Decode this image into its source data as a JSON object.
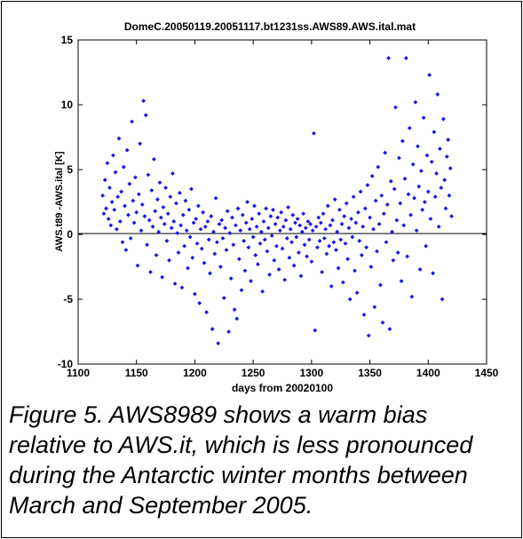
{
  "chart_data": {
    "type": "scatter",
    "title": "DomeC.20050119.20051117.bt1231ss.AWS89.AWS.ital.mat",
    "xlabel": "days from 20020100",
    "ylabel": "AWS.t89 -AWS.ital [K]",
    "xlim": [
      1100,
      1450
    ],
    "ylim": [
      -10,
      15
    ],
    "xticks": [
      1100,
      1150,
      1200,
      1250,
      1300,
      1350,
      1400,
      1450
    ],
    "yticks": [
      -10,
      -5,
      0,
      5,
      10,
      15
    ],
    "xtick_labels": [
      "1100",
      "1150",
      "1200",
      "1250",
      "1300",
      "1350",
      "1400",
      "1450"
    ],
    "ytick_labels": [
      "-10",
      "-5",
      "0",
      "5",
      "10",
      "15"
    ],
    "zero_line": true,
    "grid": false,
    "marker_color": "#1515e6",
    "points": [
      [
        1121,
        3.0
      ],
      [
        1122,
        1.6
      ],
      [
        1123,
        4.2
      ],
      [
        1124,
        2.0
      ],
      [
        1125,
        5.5
      ],
      [
        1126,
        1.2
      ],
      [
        1127,
        3.6
      ],
      [
        1128,
        0.7
      ],
      [
        1129,
        2.5
      ],
      [
        1130,
        6.1
      ],
      [
        1131,
        1.9
      ],
      [
        1132,
        4.8
      ],
      [
        1133,
        0.4
      ],
      [
        1134,
        2.9
      ],
      [
        1135,
        7.4
      ],
      [
        1136,
        1.0
      ],
      [
        1137,
        3.3
      ],
      [
        1138,
        -0.6
      ],
      [
        1139,
        5.2
      ],
      [
        1140,
        2.2
      ],
      [
        1141,
        -1.2
      ],
      [
        1142,
        6.5
      ],
      [
        1143,
        1.5
      ],
      [
        1144,
        3.9
      ],
      [
        1145,
        -0.3
      ],
      [
        1146,
        8.7
      ],
      [
        1147,
        2.6
      ],
      [
        1148,
        0.9
      ],
      [
        1149,
        4.4
      ],
      [
        1150,
        1.7
      ],
      [
        1151,
        -2.4
      ],
      [
        1152,
        3.1
      ],
      [
        1153,
        7.0
      ],
      [
        1154,
        0.3
      ],
      [
        1155,
        2.3
      ],
      [
        1156,
        10.3
      ],
      [
        1157,
        1.4
      ],
      [
        1158,
        9.2
      ],
      [
        1159,
        -0.8
      ],
      [
        1160,
        4.6
      ],
      [
        1161,
        1.1
      ],
      [
        1162,
        -2.9
      ],
      [
        1163,
        3.4
      ],
      [
        1164,
        0.6
      ],
      [
        1165,
        5.8
      ],
      [
        1166,
        1.8
      ],
      [
        1167,
        -1.6
      ],
      [
        1168,
        2.7
      ],
      [
        1169,
        0.2
      ],
      [
        1170,
        4.0
      ],
      [
        1171,
        1.3
      ],
      [
        1172,
        -3.3
      ],
      [
        1173,
        2.1
      ],
      [
        1174,
        0.8
      ],
      [
        1175,
        3.6
      ],
      [
        1176,
        -0.5
      ],
      [
        1177,
        1.6
      ],
      [
        1178,
        -2.0
      ],
      [
        1179,
        2.9
      ],
      [
        1180,
        0.5
      ],
      [
        1181,
        4.7
      ],
      [
        1182,
        1.0
      ],
      [
        1183,
        -3.8
      ],
      [
        1184,
        2.4
      ],
      [
        1185,
        0.1
      ],
      [
        1186,
        -1.4
      ],
      [
        1187,
        3.2
      ],
      [
        1188,
        0.7
      ],
      [
        1189,
        -4.1
      ],
      [
        1190,
        1.5
      ],
      [
        1191,
        -0.9
      ],
      [
        1192,
        2.6
      ],
      [
        1193,
        0.3
      ],
      [
        1194,
        -2.6
      ],
      [
        1195,
        1.9
      ],
      [
        1196,
        -0.2
      ],
      [
        1197,
        3.5
      ],
      [
        1198,
        -1.8
      ],
      [
        1199,
        0.9
      ],
      [
        1200,
        -4.6
      ],
      [
        1201,
        1.2
      ],
      [
        1202,
        -0.7
      ],
      [
        1203,
        2.2
      ],
      [
        1204,
        -5.3
      ],
      [
        1205,
        0.4
      ],
      [
        1206,
        -1.1
      ],
      [
        1207,
        1.7
      ],
      [
        1208,
        -2.2
      ],
      [
        1209,
        0.6
      ],
      [
        1210,
        -6.0
      ],
      [
        1211,
        1.0
      ],
      [
        1212,
        -0.4
      ],
      [
        1213,
        -3.0
      ],
      [
        1214,
        1.4
      ],
      [
        1215,
        -7.3
      ],
      [
        1216,
        0.2
      ],
      [
        1217,
        -1.5
      ],
      [
        1218,
        2.8
      ],
      [
        1219,
        -0.6
      ],
      [
        1220,
        -8.4
      ],
      [
        1221,
        0.8
      ],
      [
        1222,
        -2.5
      ],
      [
        1223,
        1.1
      ],
      [
        1224,
        -0.3
      ],
      [
        1225,
        -4.9
      ],
      [
        1226,
        0.5
      ],
      [
        1227,
        -1.2
      ],
      [
        1228,
        1.8
      ],
      [
        1229,
        -7.5
      ],
      [
        1230,
        0.1
      ],
      [
        1231,
        -3.4
      ],
      [
        1232,
        1.3
      ],
      [
        1233,
        -0.8
      ],
      [
        1234,
        -5.8
      ],
      [
        1235,
        0.7
      ],
      [
        1236,
        -6.5
      ],
      [
        1237,
        2.0
      ],
      [
        1238,
        -1.9
      ],
      [
        1239,
        0.3
      ],
      [
        1240,
        -4.3
      ],
      [
        1241,
        1.5
      ],
      [
        1242,
        -0.5
      ],
      [
        1243,
        -2.8
      ],
      [
        1244,
        0.9
      ],
      [
        1245,
        2.5
      ],
      [
        1246,
        -1.0
      ],
      [
        1247,
        0.4
      ],
      [
        1248,
        -3.6
      ],
      [
        1249,
        1.2
      ],
      [
        1250,
        -0.2
      ],
      [
        1251,
        2.2
      ],
      [
        1252,
        -1.6
      ],
      [
        1253,
        0.6
      ],
      [
        1254,
        -2.3
      ],
      [
        1255,
        1.6
      ],
      [
        1256,
        -0.7
      ],
      [
        1257,
        0.2
      ],
      [
        1258,
        -4.4
      ],
      [
        1259,
        1.0
      ],
      [
        1260,
        -0.4
      ],
      [
        1261,
        2.0
      ],
      [
        1262,
        -1.3
      ],
      [
        1263,
        0.5
      ],
      [
        1264,
        -3.1
      ],
      [
        1265,
        1.4
      ],
      [
        1266,
        -0.1
      ],
      [
        1267,
        1.9
      ],
      [
        1268,
        -2.0
      ],
      [
        1269,
        0.8
      ],
      [
        1270,
        -0.9
      ],
      [
        1271,
        1.3
      ],
      [
        1272,
        -2.7
      ],
      [
        1273,
        0.3
      ],
      [
        1274,
        1.7
      ],
      [
        1275,
        -1.1
      ],
      [
        1276,
        0.6
      ],
      [
        1277,
        -3.5
      ],
      [
        1278,
        1.1
      ],
      [
        1279,
        -0.3
      ],
      [
        1280,
        2.1
      ],
      [
        1281,
        -1.8
      ],
      [
        1282,
        0.4
      ],
      [
        1283,
        -0.6
      ],
      [
        1284,
        1.5
      ],
      [
        1285,
        -2.4
      ],
      [
        1286,
        0.9
      ],
      [
        1287,
        -0.2
      ],
      [
        1288,
        1.2
      ],
      [
        1289,
        -1.4
      ],
      [
        1290,
        0.7
      ],
      [
        1291,
        -3.2
      ],
      [
        1292,
        0.2
      ],
      [
        1293,
        1.6
      ],
      [
        1294,
        -0.8
      ],
      [
        1295,
        0.5
      ],
      [
        1296,
        -1.7
      ],
      [
        1297,
        1.0
      ],
      [
        1298,
        -0.4
      ],
      [
        1299,
        0.8
      ],
      [
        1300,
        -2.1
      ],
      [
        1301,
        0.3
      ],
      [
        1302,
        7.8
      ],
      [
        1303,
        -7.4
      ],
      [
        1304,
        0.6
      ],
      [
        1305,
        -1.0
      ],
      [
        1306,
        1.3
      ],
      [
        1307,
        -0.5
      ],
      [
        1308,
        0.9
      ],
      [
        1309,
        -2.9
      ],
      [
        1310,
        1.6
      ],
      [
        1311,
        -0.3
      ],
      [
        1312,
        0.4
      ],
      [
        1313,
        -1.5
      ],
      [
        1314,
        2.2
      ],
      [
        1315,
        -0.9
      ],
      [
        1316,
        0.7
      ],
      [
        1317,
        -4.0
      ],
      [
        1318,
        1.1
      ],
      [
        1319,
        -0.6
      ],
      [
        1320,
        2.7
      ],
      [
        1321,
        -1.2
      ],
      [
        1322,
        0.2
      ],
      [
        1323,
        -2.6
      ],
      [
        1324,
        1.9
      ],
      [
        1325,
        -0.4
      ],
      [
        1326,
        0.8
      ],
      [
        1327,
        -3.7
      ],
      [
        1328,
        1.4
      ],
      [
        1329,
        -0.7
      ],
      [
        1330,
        2.4
      ],
      [
        1331,
        -1.9
      ],
      [
        1332,
        0.5
      ],
      [
        1333,
        -5.0
      ],
      [
        1334,
        1.2
      ],
      [
        1335,
        -0.2
      ],
      [
        1336,
        2.9
      ],
      [
        1337,
        -2.8
      ],
      [
        1338,
        0.9
      ],
      [
        1339,
        -4.5
      ],
      [
        1340,
        1.7
      ],
      [
        1341,
        -0.5
      ],
      [
        1342,
        3.3
      ],
      [
        1343,
        -1.6
      ],
      [
        1344,
        0.6
      ],
      [
        1345,
        -6.2
      ],
      [
        1346,
        2.0
      ],
      [
        1347,
        -1.0
      ],
      [
        1348,
        3.8
      ],
      [
        1349,
        -7.8
      ],
      [
        1350,
        1.3
      ],
      [
        1351,
        -2.5
      ],
      [
        1352,
        4.5
      ],
      [
        1353,
        0.4
      ],
      [
        1354,
        -5.6
      ],
      [
        1355,
        2.6
      ],
      [
        1356,
        -1.3
      ],
      [
        1357,
        5.2
      ],
      [
        1358,
        0.8
      ],
      [
        1359,
        -3.9
      ],
      [
        1360,
        3.0
      ],
      [
        1361,
        -6.8
      ],
      [
        1362,
        1.6
      ],
      [
        1363,
        6.3
      ],
      [
        1364,
        -0.6
      ],
      [
        1365,
        2.3
      ],
      [
        1366,
        13.6
      ],
      [
        1367,
        -7.3
      ],
      [
        1368,
        4.1
      ],
      [
        1369,
        0.2
      ],
      [
        1370,
        -2.0
      ],
      [
        1371,
        3.5
      ],
      [
        1372,
        9.8
      ],
      [
        1373,
        1.1
      ],
      [
        1374,
        -1.4
      ],
      [
        1375,
        5.9
      ],
      [
        1376,
        2.4
      ],
      [
        1377,
        -3.6
      ],
      [
        1378,
        7.2
      ],
      [
        1379,
        0.7
      ],
      [
        1380,
        4.3
      ],
      [
        1381,
        13.6
      ],
      [
        1382,
        -1.7
      ],
      [
        1383,
        3.1
      ],
      [
        1384,
        8.2
      ],
      [
        1385,
        1.5
      ],
      [
        1386,
        -4.8
      ],
      [
        1387,
        5.4
      ],
      [
        1388,
        2.8
      ],
      [
        1389,
        10.2
      ],
      [
        1390,
        0.3
      ],
      [
        1391,
        6.8
      ],
      [
        1392,
        3.7
      ],
      [
        1393,
        -2.7
      ],
      [
        1394,
        4.9
      ],
      [
        1395,
        1.9
      ],
      [
        1396,
        9.0
      ],
      [
        1397,
        2.5
      ],
      [
        1398,
        -0.9
      ],
      [
        1399,
        6.1
      ],
      [
        1400,
        3.3
      ],
      [
        1401,
        12.3
      ],
      [
        1402,
        1.2
      ],
      [
        1403,
        5.6
      ],
      [
        1404,
        -3.0
      ],
      [
        1405,
        7.9
      ],
      [
        1406,
        2.9
      ],
      [
        1407,
        4.7
      ],
      [
        1408,
        10.8
      ],
      [
        1409,
        0.6
      ],
      [
        1410,
        6.6
      ],
      [
        1411,
        3.6
      ],
      [
        1412,
        -5.0
      ],
      [
        1413,
        8.9
      ],
      [
        1414,
        4.2
      ],
      [
        1415,
        2.0
      ],
      [
        1416,
        6.0
      ],
      [
        1417,
        7.3
      ],
      [
        1418,
        3.0
      ],
      [
        1419,
        5.1
      ],
      [
        1420,
        1.4
      ]
    ]
  },
  "caption": "Figure 5. AWS8989 shows a warm bias\nrelative to AWS.it, which is less  pronounced\nduring the Antarctic winter  months between\nMarch and September  2005."
}
